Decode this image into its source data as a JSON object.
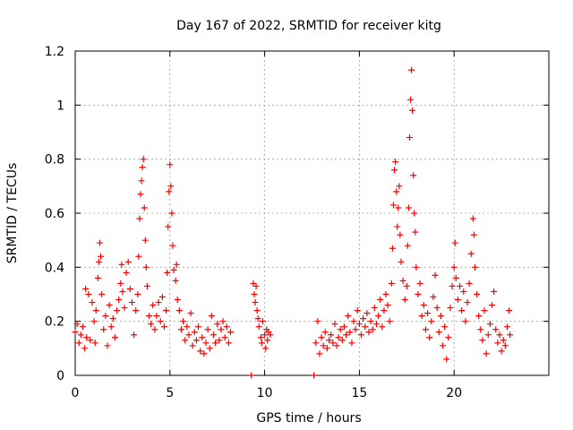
{
  "chart_data": {
    "type": "scatter",
    "title": "Day 167 of 2022, SRMTID for receiver kitg",
    "xlabel": "GPS time / hours",
    "ylabel": "SRMTID / TECUs",
    "xlim": [
      0,
      25
    ],
    "ylim": [
      0,
      1.2
    ],
    "x_ticks": [
      0,
      5,
      10,
      15,
      20
    ],
    "x_tick_labels": [
      "0",
      "5",
      "10",
      "15",
      "20"
    ],
    "y_ticks": [
      0,
      0.2,
      0.4,
      0.6,
      0.8,
      1,
      1.2
    ],
    "y_tick_labels": [
      "0",
      "0.2",
      "0.4",
      "0.6",
      "0.8",
      "1",
      "1.2"
    ],
    "grid": true,
    "marker": "plus",
    "series": [
      {
        "name": "SRMTID",
        "color": "#ff0000",
        "points": [
          [
            0.0,
            0.16
          ],
          [
            0.1,
            0.19
          ],
          [
            0.2,
            0.12
          ],
          [
            0.3,
            0.15
          ],
          [
            0.4,
            0.18
          ],
          [
            0.5,
            0.1
          ],
          [
            0.55,
            0.32
          ],
          [
            0.6,
            0.14
          ],
          [
            0.7,
            0.3
          ],
          [
            0.8,
            0.13
          ],
          [
            0.9,
            0.27
          ],
          [
            1.0,
            0.2
          ],
          [
            1.05,
            0.12
          ],
          [
            1.1,
            0.24
          ],
          [
            1.2,
            0.36
          ],
          [
            1.25,
            0.42
          ],
          [
            1.3,
            0.49
          ],
          [
            1.35,
            0.44
          ],
          [
            1.4,
            0.3
          ],
          [
            1.5,
            0.17
          ],
          [
            1.6,
            0.22
          ],
          [
            1.7,
            0.11
          ],
          [
            1.8,
            0.26
          ],
          [
            1.9,
            0.18
          ],
          [
            2.0,
            0.21
          ],
          [
            2.1,
            0.14
          ],
          [
            2.2,
            0.24
          ],
          [
            2.3,
            0.28
          ],
          [
            2.4,
            0.34
          ],
          [
            2.45,
            0.41
          ],
          [
            2.5,
            0.31
          ],
          [
            2.6,
            0.25
          ],
          [
            2.7,
            0.38
          ],
          [
            2.8,
            0.42
          ],
          [
            2.9,
            0.32
          ],
          [
            3.0,
            0.27
          ],
          [
            3.1,
            0.15
          ],
          [
            3.2,
            0.24
          ],
          [
            3.3,
            0.3
          ],
          [
            3.35,
            0.44
          ],
          [
            3.4,
            0.58
          ],
          [
            3.45,
            0.67
          ],
          [
            3.5,
            0.72
          ],
          [
            3.55,
            0.77
          ],
          [
            3.6,
            0.8
          ],
          [
            3.65,
            0.62
          ],
          [
            3.7,
            0.5
          ],
          [
            3.75,
            0.4
          ],
          [
            3.8,
            0.33
          ],
          [
            3.9,
            0.22
          ],
          [
            4.0,
            0.19
          ],
          [
            4.1,
            0.26
          ],
          [
            4.2,
            0.17
          ],
          [
            4.3,
            0.22
          ],
          [
            4.4,
            0.27
          ],
          [
            4.5,
            0.2
          ],
          [
            4.6,
            0.29
          ],
          [
            4.7,
            0.18
          ],
          [
            4.8,
            0.24
          ],
          [
            4.85,
            0.38
          ],
          [
            4.9,
            0.55
          ],
          [
            4.95,
            0.68
          ],
          [
            5.0,
            0.78
          ],
          [
            5.05,
            0.7
          ],
          [
            5.1,
            0.6
          ],
          [
            5.15,
            0.48
          ],
          [
            5.2,
            0.39
          ],
          [
            5.3,
            0.35
          ],
          [
            5.35,
            0.41
          ],
          [
            5.4,
            0.28
          ],
          [
            5.5,
            0.24
          ],
          [
            5.6,
            0.17
          ],
          [
            5.7,
            0.2
          ],
          [
            5.8,
            0.13
          ],
          [
            5.9,
            0.18
          ],
          [
            6.0,
            0.15
          ],
          [
            6.1,
            0.23
          ],
          [
            6.2,
            0.11
          ],
          [
            6.3,
            0.16
          ],
          [
            6.4,
            0.13
          ],
          [
            6.5,
            0.18
          ],
          [
            6.6,
            0.09
          ],
          [
            6.7,
            0.14
          ],
          [
            6.8,
            0.08
          ],
          [
            6.9,
            0.12
          ],
          [
            7.0,
            0.17
          ],
          [
            7.1,
            0.1
          ],
          [
            7.2,
            0.22
          ],
          [
            7.3,
            0.15
          ],
          [
            7.4,
            0.12
          ],
          [
            7.5,
            0.19
          ],
          [
            7.6,
            0.13
          ],
          [
            7.7,
            0.17
          ],
          [
            7.8,
            0.2
          ],
          [
            7.9,
            0.14
          ],
          [
            8.0,
            0.18
          ],
          [
            8.1,
            0.12
          ],
          [
            8.2,
            0.16
          ],
          [
            9.3,
            0.0
          ],
          [
            9.4,
            0.34
          ],
          [
            9.45,
            0.3
          ],
          [
            9.5,
            0.27
          ],
          [
            9.55,
            0.33
          ],
          [
            9.6,
            0.24
          ],
          [
            9.65,
            0.21
          ],
          [
            9.7,
            0.18
          ],
          [
            9.8,
            0.14
          ],
          [
            9.85,
            0.12
          ],
          [
            9.9,
            0.2
          ],
          [
            10.0,
            0.15
          ],
          [
            10.05,
            0.1
          ],
          [
            10.1,
            0.17
          ],
          [
            10.15,
            0.13
          ],
          [
            10.2,
            0.16
          ],
          [
            10.3,
            0.15
          ],
          [
            12.6,
            0.0
          ],
          [
            12.7,
            0.12
          ],
          [
            12.8,
            0.2
          ],
          [
            12.9,
            0.08
          ],
          [
            13.0,
            0.14
          ],
          [
            13.1,
            0.11
          ],
          [
            13.2,
            0.16
          ],
          [
            13.3,
            0.1
          ],
          [
            13.4,
            0.13
          ],
          [
            13.5,
            0.15
          ],
          [
            13.6,
            0.12
          ],
          [
            13.7,
            0.19
          ],
          [
            13.8,
            0.11
          ],
          [
            13.9,
            0.14
          ],
          [
            14.0,
            0.17
          ],
          [
            14.1,
            0.13
          ],
          [
            14.2,
            0.18
          ],
          [
            14.3,
            0.15
          ],
          [
            14.4,
            0.22
          ],
          [
            14.5,
            0.16
          ],
          [
            14.6,
            0.12
          ],
          [
            14.7,
            0.2
          ],
          [
            14.8,
            0.17
          ],
          [
            14.9,
            0.24
          ],
          [
            15.0,
            0.19
          ],
          [
            15.1,
            0.15
          ],
          [
            15.2,
            0.21
          ],
          [
            15.3,
            0.18
          ],
          [
            15.4,
            0.23
          ],
          [
            15.5,
            0.16
          ],
          [
            15.6,
            0.2
          ],
          [
            15.7,
            0.17
          ],
          [
            15.8,
            0.25
          ],
          [
            15.9,
            0.19
          ],
          [
            16.0,
            0.22
          ],
          [
            16.1,
            0.28
          ],
          [
            16.2,
            0.18
          ],
          [
            16.3,
            0.24
          ],
          [
            16.4,
            0.3
          ],
          [
            16.5,
            0.26
          ],
          [
            16.6,
            0.2
          ],
          [
            16.7,
            0.34
          ],
          [
            16.75,
            0.47
          ],
          [
            16.8,
            0.63
          ],
          [
            16.85,
            0.76
          ],
          [
            16.9,
            0.79
          ],
          [
            16.95,
            0.68
          ],
          [
            17.0,
            0.55
          ],
          [
            17.05,
            0.62
          ],
          [
            17.1,
            0.7
          ],
          [
            17.15,
            0.52
          ],
          [
            17.2,
            0.42
          ],
          [
            17.3,
            0.35
          ],
          [
            17.4,
            0.28
          ],
          [
            17.5,
            0.33
          ],
          [
            17.55,
            0.48
          ],
          [
            17.6,
            0.62
          ],
          [
            17.65,
            0.88
          ],
          [
            17.7,
            1.02
          ],
          [
            17.75,
            1.13
          ],
          [
            17.8,
            0.98
          ],
          [
            17.85,
            0.74
          ],
          [
            17.9,
            0.6
          ],
          [
            17.95,
            0.53
          ],
          [
            18.0,
            0.4
          ],
          [
            18.1,
            0.3
          ],
          [
            18.2,
            0.34
          ],
          [
            18.3,
            0.22
          ],
          [
            18.4,
            0.26
          ],
          [
            18.5,
            0.17
          ],
          [
            18.6,
            0.23
          ],
          [
            18.7,
            0.14
          ],
          [
            18.8,
            0.2
          ],
          [
            18.9,
            0.29
          ],
          [
            19.0,
            0.37
          ],
          [
            19.1,
            0.25
          ],
          [
            19.2,
            0.16
          ],
          [
            19.3,
            0.22
          ],
          [
            19.4,
            0.11
          ],
          [
            19.5,
            0.18
          ],
          [
            19.6,
            0.06
          ],
          [
            19.7,
            0.14
          ],
          [
            19.8,
            0.25
          ],
          [
            19.9,
            0.33
          ],
          [
            20.0,
            0.4
          ],
          [
            20.05,
            0.49
          ],
          [
            20.1,
            0.36
          ],
          [
            20.2,
            0.28
          ],
          [
            20.3,
            0.33
          ],
          [
            20.4,
            0.24
          ],
          [
            20.5,
            0.31
          ],
          [
            20.6,
            0.2
          ],
          [
            20.7,
            0.27
          ],
          [
            20.8,
            0.34
          ],
          [
            20.9,
            0.45
          ],
          [
            21.0,
            0.58
          ],
          [
            21.05,
            0.52
          ],
          [
            21.1,
            0.4
          ],
          [
            21.2,
            0.3
          ],
          [
            21.3,
            0.22
          ],
          [
            21.4,
            0.17
          ],
          [
            21.5,
            0.13
          ],
          [
            21.6,
            0.24
          ],
          [
            21.7,
            0.08
          ],
          [
            21.8,
            0.15
          ],
          [
            21.9,
            0.19
          ],
          [
            22.0,
            0.26
          ],
          [
            22.1,
            0.31
          ],
          [
            22.2,
            0.17
          ],
          [
            22.3,
            0.12
          ],
          [
            22.4,
            0.15
          ],
          [
            22.5,
            0.09
          ],
          [
            22.6,
            0.13
          ],
          [
            22.7,
            0.11
          ],
          [
            22.8,
            0.18
          ],
          [
            22.9,
            0.24
          ],
          [
            22.95,
            0.15
          ]
        ]
      }
    ]
  }
}
